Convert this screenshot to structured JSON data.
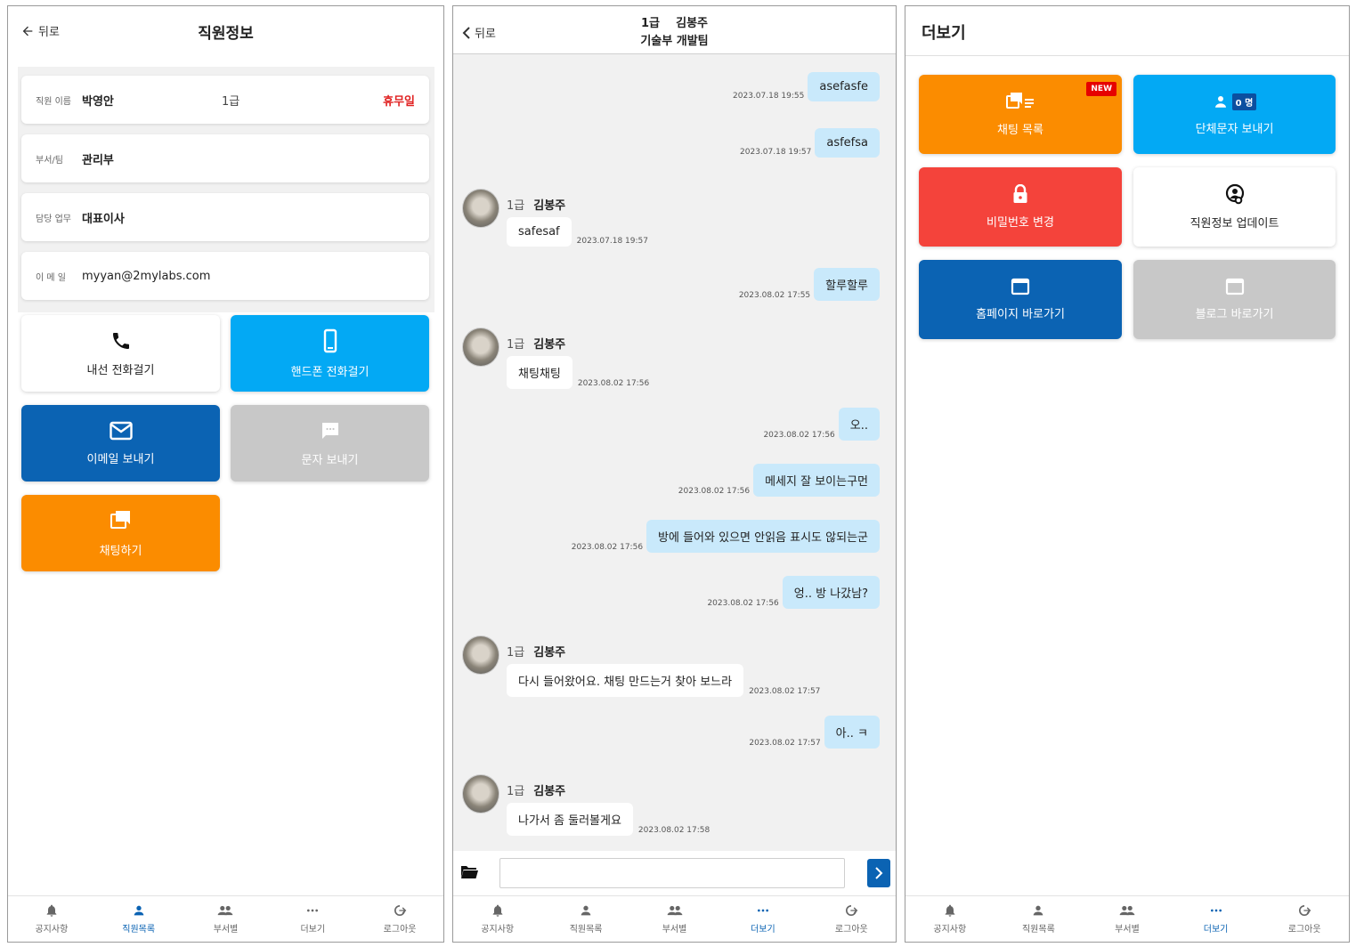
{
  "employee_info": {
    "back_label": "뒤로",
    "title": "직원정보",
    "rows": [
      {
        "label": "직원 이름",
        "value": "박영안",
        "grade": "1급",
        "status": "휴무일"
      },
      {
        "label": "부서/팀",
        "value": "관리부"
      },
      {
        "label": "담당 업무",
        "value": "대표이사"
      },
      {
        "label": "이 메 일",
        "value": "myyan@2mylabs.com"
      }
    ],
    "actions": {
      "extension_call": "내선 전화걸기",
      "mobile_call": "핸드폰 전화걸기",
      "send_email": "이메일 보내기",
      "send_sms": "문자 보내기",
      "start_chat": "채팅하기"
    }
  },
  "chat": {
    "back_label": "뒤로",
    "header_line1": "1급    김봉주",
    "header_line2": "기술부 개발팀",
    "messages": [
      {
        "mine": true,
        "text": "asefasfe",
        "time": "2023.07.18 19:55"
      },
      {
        "mine": true,
        "text": "asfefsa",
        "time": "2023.07.18 19:57"
      },
      {
        "mine": false,
        "grade": "1급",
        "name": "김봉주",
        "text": "safesaf",
        "time": "2023.07.18 19:57"
      },
      {
        "mine": true,
        "text": "할루할루",
        "time": "2023.08.02 17:55"
      },
      {
        "mine": false,
        "grade": "1급",
        "name": "김봉주",
        "text": "채팅채팅",
        "time": "2023.08.02 17:56"
      },
      {
        "mine": true,
        "text": "오..",
        "time": "2023.08.02 17:56"
      },
      {
        "mine": true,
        "text": "메세지 잘 보이는구먼",
        "time": "2023.08.02 17:56"
      },
      {
        "mine": true,
        "text": "방에 들어와 있으면 안읽음 표시도 않되는군",
        "time": "2023.08.02 17:56"
      },
      {
        "mine": true,
        "text": "엉.. 방 나갔남?",
        "time": "2023.08.02 17:56"
      },
      {
        "mine": false,
        "grade": "1급",
        "name": "김봉주",
        "text": "다시 들어왔어요. 채팅 만드는거 찾아 보느라",
        "time": "2023.08.02 17:57"
      },
      {
        "mine": true,
        "text": "아.. ㅋ",
        "time": "2023.08.02 17:57"
      },
      {
        "mine": false,
        "grade": "1급",
        "name": "김봉주",
        "text": "나가서 좀 둘러볼게요",
        "time": "2023.08.02 17:58"
      }
    ],
    "input_placeholder": ""
  },
  "more": {
    "title": "더보기",
    "tiles": {
      "chat_list": "채팅 목록",
      "new_badge": "NEW",
      "group_sms": "단체문자 보내기",
      "group_count": "0 명",
      "change_password": "비밀번호 변경",
      "update_info": "직원정보 업데이트",
      "homepage": "홈페이지 바로가기",
      "blog": "블로그 바로가기"
    }
  },
  "tabbar": {
    "notice": "공지사항",
    "employees": "직원목록",
    "departments": "부서별",
    "more": "더보기",
    "logout": "로그아웃"
  },
  "colors": {
    "accent_blue": "#0b63b3",
    "sky": "#03a9f4",
    "orange": "#fb8c00",
    "red": "#f4433b",
    "gray_tile": "#c8c8c8",
    "status_red": "#e02020",
    "my_bubble": "#c9e9fb"
  }
}
